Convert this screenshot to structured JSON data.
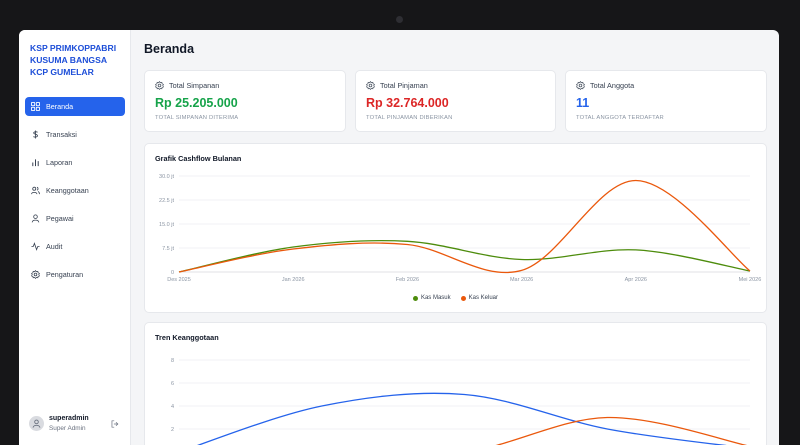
{
  "brand": "KSP PRIMKOPPABRI KUSUMA BANGSA KCP GUMELAR",
  "nav": [
    {
      "label": "Beranda",
      "icon": "dashboard-icon",
      "active": true
    },
    {
      "label": "Transaksi",
      "icon": "dollar-icon"
    },
    {
      "label": "Laporan",
      "icon": "bar-chart-icon"
    },
    {
      "label": "Keanggotaan",
      "icon": "users-icon"
    },
    {
      "label": "Pegawai",
      "icon": "user-icon"
    },
    {
      "label": "Audit",
      "icon": "activity-icon"
    },
    {
      "label": "Pengaturan",
      "icon": "gear-icon"
    }
  ],
  "user": {
    "name": "superadmin",
    "role": "Super Admin"
  },
  "page_title": "Beranda",
  "stats": [
    {
      "label": "Total Simpanan",
      "value": "Rp 25.205.000",
      "sub": "TOTAL SIMPANAN DITERIMA",
      "color": "#16a34a"
    },
    {
      "label": "Total Pinjaman",
      "value": "Rp 32.764.000",
      "sub": "TOTAL PINJAMAN DIBERIKAN",
      "color": "#dc2626"
    },
    {
      "label": "Total Anggota",
      "value": "11",
      "sub": "TOTAL ANGGOTA TERDAFTAR",
      "color": "#2563eb"
    }
  ],
  "chart_data": [
    {
      "type": "line",
      "title": "Grafik Cashflow Bulanan",
      "x": [
        "Des 2025",
        "Jan 2026",
        "Feb 2026",
        "Mar 2026",
        "Apr 2026",
        "Mei 2026"
      ],
      "y_ticks": [
        "0",
        "7.5 jt",
        "15.0 jt",
        "22.5 jt",
        "30.0 jt"
      ],
      "ylim": [
        0,
        30
      ],
      "series": [
        {
          "name": "Kas Masuk",
          "color": "#4d8c0c",
          "values": [
            0,
            7.8,
            9.6,
            3.9,
            6.9,
            0.3
          ]
        },
        {
          "name": "Kas Keluar",
          "color": "#ea580c",
          "values": [
            0,
            7.2,
            8.6,
            0.5,
            28.6,
            0.3
          ]
        }
      ],
      "legend": "bottom",
      "grid": true
    },
    {
      "type": "line",
      "title": "Tren Keanggotaan",
      "y_ticks": [
        "2",
        "4",
        "6",
        "8"
      ],
      "ylim": [
        0,
        8
      ],
      "series": [
        {
          "color": "#2563eb",
          "values": [
            0,
            4,
            5,
            2,
            0.3
          ]
        },
        {
          "color": "#ea580c",
          "values": [
            0,
            0,
            0,
            3,
            0.5
          ]
        }
      ],
      "grid": true
    }
  ]
}
